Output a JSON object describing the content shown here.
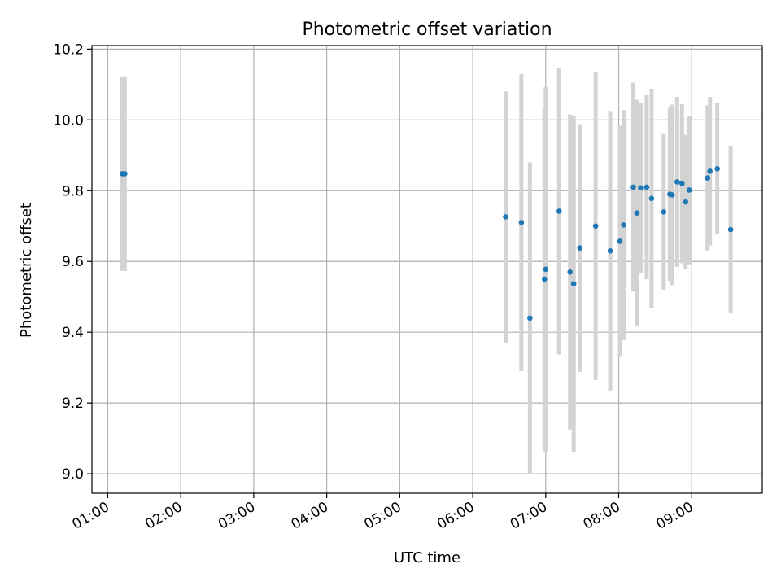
{
  "chart_data": {
    "type": "scatter",
    "title": "Photometric offset variation",
    "xlabel": "UTC time",
    "ylabel": "Photometric offset",
    "xlim": [
      "00:47",
      "09:58"
    ],
    "ylim": [
      8.945,
      10.21
    ],
    "grid": true,
    "x_ticks": [
      "01:00",
      "02:00",
      "03:00",
      "04:00",
      "05:00",
      "06:00",
      "07:00",
      "08:00",
      "09:00"
    ],
    "y_ticks": [
      "9.0",
      "9.2",
      "9.4",
      "9.6",
      "9.8",
      "10.0",
      "10.2"
    ],
    "colors": {
      "point": "#1f77b4",
      "errorbar": "#d3d3d3",
      "grid": "#b0b0b0"
    },
    "points": [
      {
        "t": "01:12",
        "y": 9.848,
        "err": 0.275
      },
      {
        "t": "01:14",
        "y": 9.848,
        "err": 0.275
      },
      {
        "t": "06:27",
        "y": 9.726,
        "err": 0.355
      },
      {
        "t": "06:40",
        "y": 9.71,
        "err": 0.42
      },
      {
        "t": "06:47",
        "y": 9.44,
        "err": 0.44
      },
      {
        "t": "06:59",
        "y": 9.55,
        "err": 0.485
      },
      {
        "t": "07:00",
        "y": 9.578,
        "err": 0.515
      },
      {
        "t": "07:11",
        "y": 9.742,
        "err": 0.405
      },
      {
        "t": "07:20",
        "y": 9.57,
        "err": 0.445
      },
      {
        "t": "07:23",
        "y": 9.537,
        "err": 0.475
      },
      {
        "t": "07:28",
        "y": 9.638,
        "err": 0.35
      },
      {
        "t": "07:41",
        "y": 9.7,
        "err": 0.435
      },
      {
        "t": "07:53",
        "y": 9.63,
        "err": 0.395
      },
      {
        "t": "08:01",
        "y": 9.657,
        "err": 0.327
      },
      {
        "t": "08:04",
        "y": 9.703,
        "err": 0.325
      },
      {
        "t": "08:12",
        "y": 9.81,
        "err": 0.295
      },
      {
        "t": "08:15",
        "y": 9.737,
        "err": 0.32
      },
      {
        "t": "08:18",
        "y": 9.808,
        "err": 0.24
      },
      {
        "t": "08:23",
        "y": 9.81,
        "err": 0.26
      },
      {
        "t": "08:27",
        "y": 9.778,
        "err": 0.31
      },
      {
        "t": "08:37",
        "y": 9.74,
        "err": 0.22
      },
      {
        "t": "08:42",
        "y": 9.79,
        "err": 0.245
      },
      {
        "t": "08:44",
        "y": 9.788,
        "err": 0.255
      },
      {
        "t": "08:48",
        "y": 9.825,
        "err": 0.24
      },
      {
        "t": "08:52",
        "y": 9.82,
        "err": 0.225
      },
      {
        "t": "08:55",
        "y": 9.768,
        "err": 0.19
      },
      {
        "t": "08:58",
        "y": 9.802,
        "err": 0.21
      },
      {
        "t": "09:13",
        "y": 9.836,
        "err": 0.205
      },
      {
        "t": "09:15",
        "y": 9.855,
        "err": 0.21
      },
      {
        "t": "09:21",
        "y": 9.862,
        "err": 0.185
      },
      {
        "t": "09:32",
        "y": 9.69,
        "err": 0.237
      }
    ]
  }
}
